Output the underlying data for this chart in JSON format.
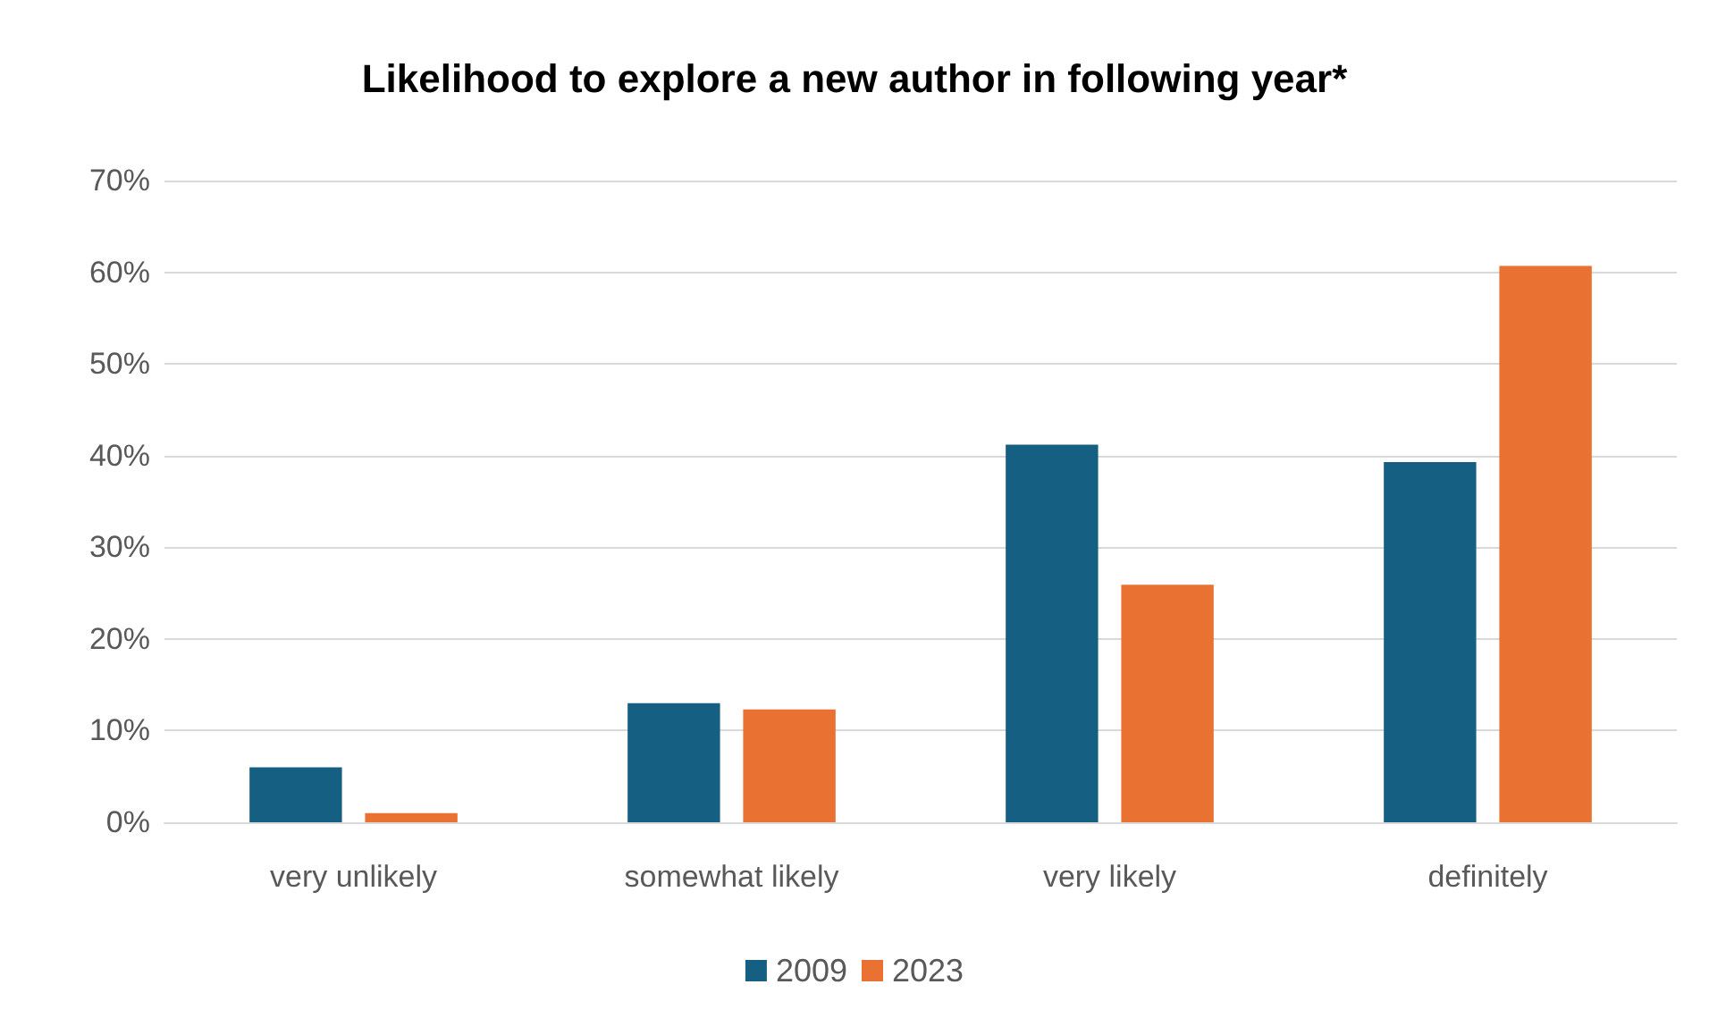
{
  "chart_data": {
    "type": "bar",
    "title": "Likelihood to explore a new author in following year*",
    "categories": [
      "very unlikely",
      "somewhat likely",
      "very likely",
      "definitely"
    ],
    "series": [
      {
        "name": "2009",
        "color": "#156082",
        "values": [
          6.0,
          13.0,
          41.2,
          39.3
        ]
      },
      {
        "name": "2023",
        "color": "#e97132",
        "values": [
          1.0,
          12.3,
          25.9,
          60.7
        ]
      }
    ],
    "ylim": [
      0,
      70
    ],
    "yticks": [
      {
        "value": 0,
        "label": "0%"
      },
      {
        "value": 10,
        "label": "10%"
      },
      {
        "value": 20,
        "label": "20%"
      },
      {
        "value": 30,
        "label": "30%"
      },
      {
        "value": 40,
        "label": "40%"
      },
      {
        "value": 50,
        "label": "50%"
      },
      {
        "value": 60,
        "label": "60%"
      },
      {
        "value": 70,
        "label": "70%"
      }
    ],
    "grid": "y",
    "legend": "bottom"
  }
}
